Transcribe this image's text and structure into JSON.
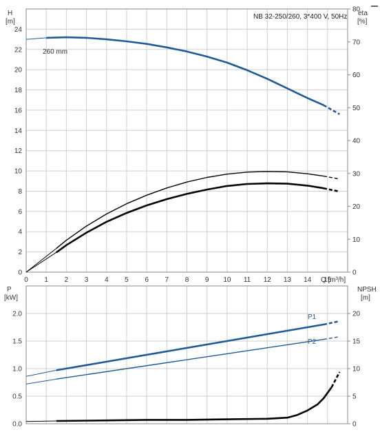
{
  "chart_data": [
    {
      "type": "line",
      "title": "NB 32-250/260, 3*400 V, 50Hz",
      "xlabel": "Q [m³/h]",
      "xlim": [
        0,
        16
      ],
      "x_ticks": [
        "0",
        "1",
        "2",
        "3",
        "4",
        "5",
        "6",
        "7",
        "8",
        "9",
        "10",
        "11",
        "12",
        "13",
        "14",
        "15"
      ],
      "grid": true,
      "left_axis": {
        "label_line1": "H",
        "label_line2": "[m]",
        "ylim": [
          0,
          26
        ],
        "ticks": [
          "0",
          "2",
          "4",
          "6",
          "8",
          "10",
          "12",
          "14",
          "16",
          "18",
          "20",
          "22",
          "24"
        ]
      },
      "right_axis": {
        "label_line1": "eta",
        "label_line2": "[%]",
        "ylim": [
          0,
          80
        ],
        "ticks": [
          "0",
          "10",
          "20",
          "30",
          "40",
          "50",
          "60",
          "70",
          "80"
        ]
      },
      "annotations": [
        "260 mm"
      ],
      "series": [
        {
          "axis": "left",
          "color": "#1f5a96",
          "x": [
            0,
            1,
            2,
            3,
            4,
            5,
            6,
            7,
            8,
            9,
            10,
            11,
            12,
            13,
            14,
            14.8,
            15.6
          ],
          "y": [
            23.0,
            23.15,
            23.2,
            23.15,
            23.0,
            22.8,
            22.55,
            22.2,
            21.8,
            21.3,
            20.7,
            19.95,
            19.1,
            18.15,
            17.2,
            16.5,
            15.6
          ]
        },
        {
          "axis": "right",
          "color": "#000000",
          "x": [
            0,
            1.5,
            2,
            3,
            4,
            5,
            6,
            7,
            8,
            9,
            10,
            11,
            12,
            13,
            14,
            14.8,
            15.6
          ],
          "y": [
            0,
            7.2,
            9.7,
            14.0,
            17.7,
            20.8,
            23.4,
            25.6,
            27.4,
            28.8,
            29.8,
            30.4,
            30.6,
            30.5,
            29.9,
            29.2,
            28.3
          ]
        },
        {
          "axis": "right",
          "color": "#000000",
          "x": [
            0,
            1.5,
            2,
            3,
            4,
            5,
            6,
            7,
            8,
            9,
            10,
            11,
            12,
            13,
            14,
            14.8,
            15.6
          ],
          "y": [
            0,
            6.0,
            8.2,
            12.0,
            15.3,
            18.0,
            20.3,
            22.2,
            23.8,
            25.1,
            26.2,
            26.8,
            27.0,
            26.9,
            26.3,
            25.5,
            24.5
          ]
        }
      ]
    },
    {
      "type": "line",
      "xlim": [
        0,
        16
      ],
      "grid": true,
      "left_axis": {
        "label_line1": "P",
        "label_line2": "[kW]",
        "ylim": [
          0,
          2.5
        ],
        "ticks": [
          "0.0",
          "0.5",
          "1.0",
          "1.5",
          "2.0"
        ]
      },
      "right_axis": {
        "label_line1": "NPSH",
        "label_line2": "[m]",
        "ylim": [
          0,
          25
        ],
        "ticks": [
          "0",
          "5",
          "10",
          "15",
          "20"
        ]
      },
      "series": [
        {
          "name": "P1",
          "axis": "left",
          "color": "#1f5a96",
          "x": [
            0,
            1.5,
            14.8,
            15.6
          ],
          "y": [
            0.86,
            0.97,
            1.8,
            1.86
          ]
        },
        {
          "name": "P2",
          "axis": "left",
          "color": "#1f5a96",
          "x": [
            0,
            1.5,
            14.8,
            15.6
          ],
          "y": [
            0.72,
            0.81,
            1.53,
            1.58
          ]
        },
        {
          "axis": "right",
          "color": "#000000",
          "x": [
            0,
            1.5,
            4,
            6,
            8,
            10,
            12,
            13,
            13.5,
            14,
            14.5,
            14.8,
            15.2,
            15.6
          ],
          "y": [
            0.4,
            0.5,
            0.6,
            0.7,
            0.7,
            0.8,
            0.9,
            1.1,
            1.6,
            2.4,
            3.5,
            4.6,
            6.6,
            9.4
          ]
        }
      ]
    }
  ]
}
